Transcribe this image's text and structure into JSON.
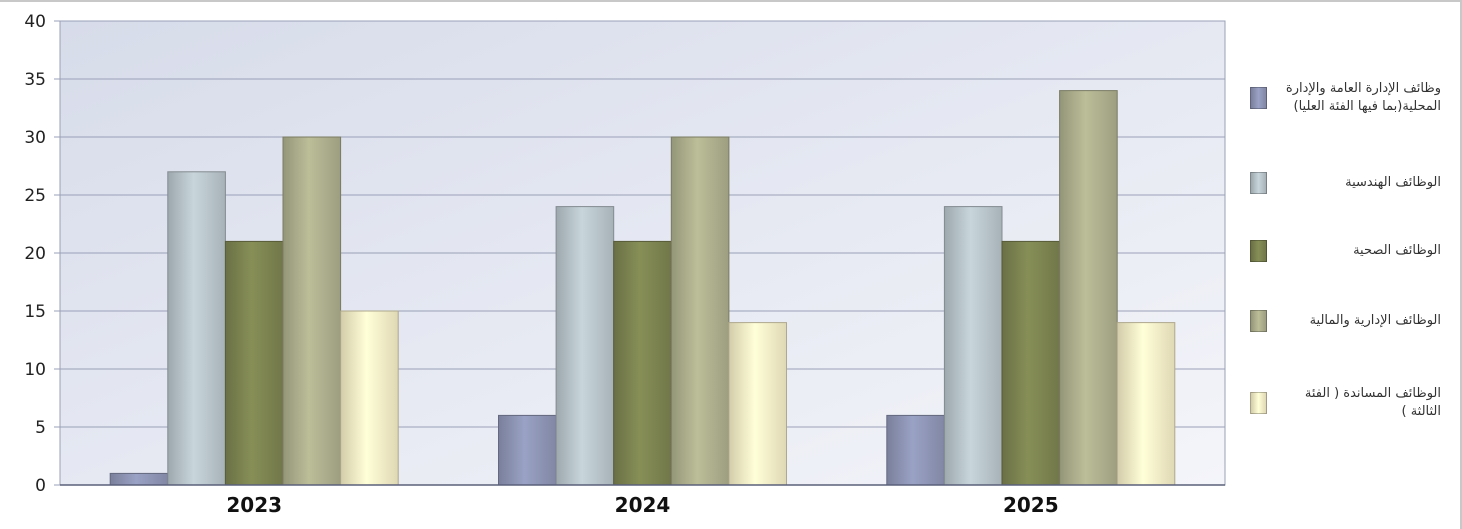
{
  "chart_data": {
    "type": "bar",
    "categories": [
      "2023",
      "2024",
      "2025"
    ],
    "ylim": [
      0,
      40
    ],
    "yticks": [
      0,
      5,
      10,
      15,
      20,
      25,
      30,
      35,
      40
    ],
    "grid": true,
    "legend_position": "right",
    "series": [
      {
        "name": "وظائف الإدارة العامة والإدارة المحلية(بما فيها الفئة العليا)",
        "color": "#8f96b6",
        "values": [
          1,
          6,
          6
        ]
      },
      {
        "name": "الوظائف الهندسية",
        "color": "#b9c6cc",
        "values": [
          27,
          24,
          24
        ]
      },
      {
        "name": "الوظائف الصحية",
        "color": "#7d8451",
        "values": [
          21,
          21,
          21
        ]
      },
      {
        "name": "الوظائف الإدارية والمالية",
        "color": "#aeb08e",
        "values": [
          30,
          30,
          34
        ]
      },
      {
        "name": "الوظائف المساندة ( الفئة الثالثة )",
        "color": "#f8f0c8",
        "values": [
          15,
          14,
          14
        ]
      }
    ],
    "xlabel": "",
    "ylabel": "",
    "title": ""
  }
}
